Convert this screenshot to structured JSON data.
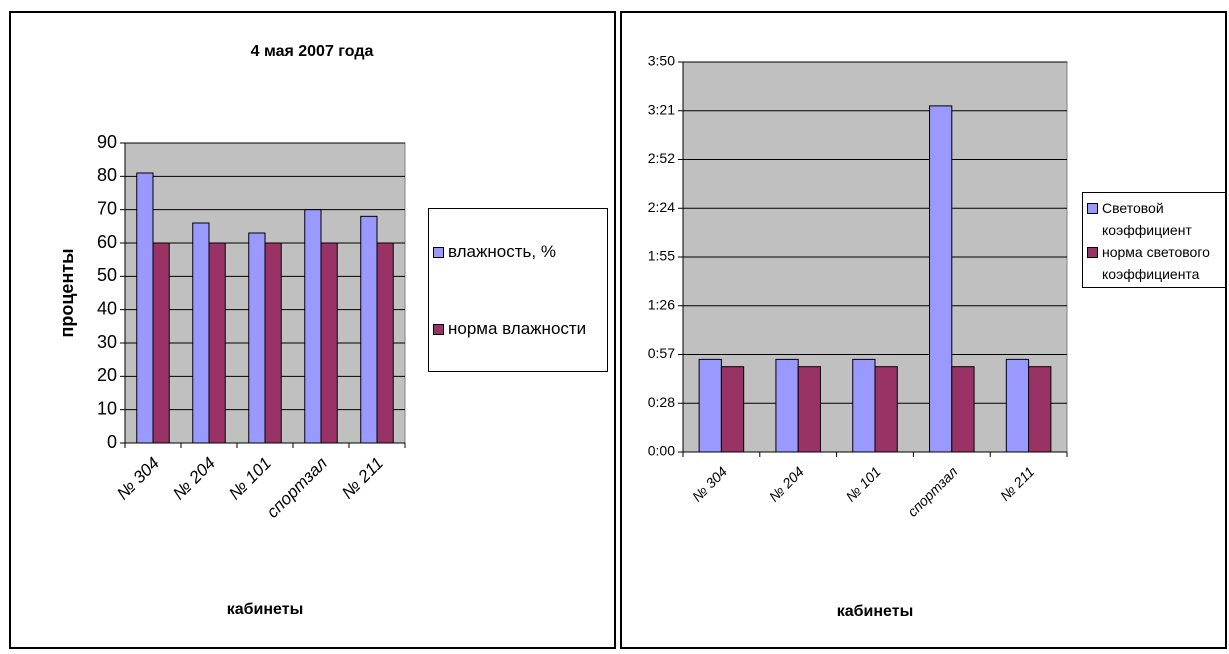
{
  "chart_data": [
    {
      "type": "bar",
      "title": "4 мая 2007 года",
      "y_label": "проценты",
      "x_label": "кабинеты",
      "categories": [
        "№ 304",
        "№ 204",
        "№ 101",
        "спортзал",
        "№ 211"
      ],
      "series": [
        {
          "name": "влажность, %",
          "color": "#9999ff",
          "values": [
            81,
            66,
            63,
            70,
            68
          ]
        },
        {
          "name": "норма влажности",
          "color": "#993366",
          "values": [
            60,
            60,
            60,
            60,
            60
          ]
        }
      ],
      "ylim": [
        0,
        90
      ],
      "yticks": [
        0,
        10,
        20,
        30,
        40,
        50,
        60,
        70,
        80,
        90
      ],
      "grid": true,
      "legend": "right"
    },
    {
      "type": "bar",
      "x_label": "кабинеты",
      "categories": [
        "№ 304",
        "№ 204",
        "№ 101",
        "спортзал",
        "№ 211"
      ],
      "series": [
        {
          "name": "Световой коэффициент",
          "color": "#9999ff",
          "values": [
            0.038,
            0.038,
            0.038,
            0.142,
            0.038
          ]
        },
        {
          "name": "норма светового коэффициента",
          "color": "#993366",
          "values": [
            0.035,
            0.035,
            0.035,
            0.035,
            0.035
          ]
        }
      ],
      "ylim": [
        0,
        0.16
      ],
      "yticks": [
        {
          "value": 0,
          "label": "0:00"
        },
        {
          "value": 0.02,
          "label": "0:28"
        },
        {
          "value": 0.04,
          "label": "0:57"
        },
        {
          "value": 0.06,
          "label": "1:26"
        },
        {
          "value": 0.08,
          "label": "1:55"
        },
        {
          "value": 0.1,
          "label": "2:24"
        },
        {
          "value": 0.12,
          "label": "2:52"
        },
        {
          "value": 0.14,
          "label": "3:21"
        },
        {
          "value": 0.16,
          "label": "3:50"
        }
      ],
      "grid": true,
      "legend": "right"
    }
  ]
}
